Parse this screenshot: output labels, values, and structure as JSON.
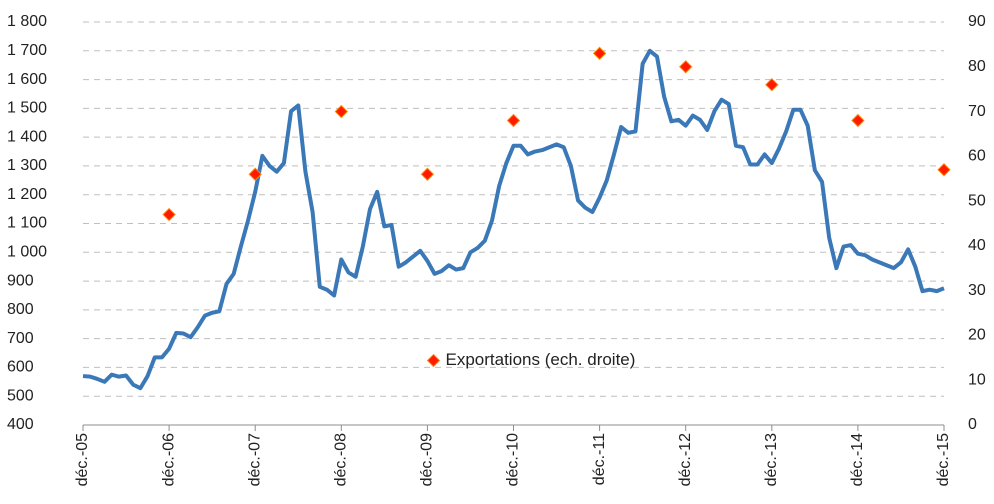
{
  "chart_data": {
    "type": "line",
    "categories": [
      "déc.-05",
      null,
      null,
      null,
      null,
      null,
      null,
      null,
      null,
      null,
      null,
      null,
      "déc.-06",
      null,
      null,
      null,
      null,
      null,
      null,
      null,
      null,
      null,
      null,
      null,
      "déc.-07",
      null,
      null,
      null,
      null,
      null,
      null,
      null,
      null,
      null,
      null,
      null,
      "déc.-08",
      null,
      null,
      null,
      null,
      null,
      null,
      null,
      null,
      null,
      null,
      null,
      "déc.-09",
      null,
      null,
      null,
      null,
      null,
      null,
      null,
      null,
      null,
      null,
      null,
      "déc.-10",
      null,
      null,
      null,
      null,
      null,
      null,
      null,
      null,
      null,
      null,
      null,
      "déc.-11",
      null,
      null,
      null,
      null,
      null,
      null,
      null,
      null,
      null,
      null,
      null,
      "déc.-12",
      null,
      null,
      null,
      null,
      null,
      null,
      null,
      null,
      null,
      null,
      null,
      "déc.-13",
      null,
      null,
      null,
      null,
      null,
      null,
      null,
      null,
      null,
      null,
      null,
      "déc.-14",
      null,
      null,
      null,
      null,
      null,
      null,
      null,
      null,
      null,
      null,
      null,
      "déc.-15"
    ],
    "series": [
      {
        "type": "line",
        "color": "#3a78b7",
        "axis": "y",
        "values": [
          570,
          568,
          560,
          550,
          575,
          568,
          572,
          540,
          528,
          570,
          635,
          635,
          665,
          720,
          718,
          705,
          740,
          780,
          790,
          795,
          890,
          925,
          1020,
          1110,
          1210,
          1335,
          1300,
          1280,
          1310,
          1490,
          1510,
          1280,
          1140,
          880,
          870,
          850,
          975,
          930,
          915,
          1020,
          1150,
          1210,
          1090,
          1095,
          950,
          965,
          985,
          1005,
          970,
          925,
          935,
          955,
          940,
          945,
          1000,
          1015,
          1040,
          1110,
          1230,
          1310,
          1370,
          1370,
          1340,
          1350,
          1355,
          1365,
          1375,
          1365,
          1300,
          1180,
          1155,
          1140,
          1190,
          1250,
          1340,
          1435,
          1415,
          1420,
          1655,
          1700,
          1680,
          1540,
          1455,
          1460,
          1440,
          1475,
          1460,
          1425,
          1490,
          1530,
          1515,
          1370,
          1365,
          1305,
          1305,
          1340,
          1310,
          1360,
          1420,
          1495,
          1495,
          1440,
          1285,
          1245,
          1050,
          945,
          1020,
          1025,
          995,
          990,
          975,
          965,
          955,
          945,
          965,
          1010,
          950,
          865,
          870,
          865,
          875
        ]
      },
      {
        "type": "scatter",
        "name": "Exportations (ech. droite)",
        "color": "#ff1a00",
        "axis": "y2",
        "values": [
          null,
          null,
          null,
          null,
          null,
          null,
          null,
          null,
          null,
          null,
          null,
          null,
          47,
          null,
          null,
          null,
          null,
          null,
          null,
          null,
          null,
          null,
          null,
          null,
          56,
          null,
          null,
          null,
          null,
          null,
          null,
          null,
          null,
          null,
          null,
          null,
          70,
          null,
          null,
          null,
          null,
          null,
          null,
          null,
          null,
          null,
          null,
          null,
          56,
          null,
          null,
          null,
          null,
          null,
          null,
          null,
          null,
          null,
          null,
          null,
          68,
          null,
          null,
          null,
          null,
          null,
          null,
          null,
          null,
          null,
          null,
          null,
          83,
          null,
          null,
          null,
          null,
          null,
          null,
          null,
          null,
          null,
          null,
          null,
          80,
          null,
          null,
          null,
          null,
          null,
          null,
          null,
          null,
          null,
          null,
          null,
          76,
          null,
          null,
          null,
          null,
          null,
          null,
          null,
          null,
          null,
          null,
          null,
          68,
          null,
          null,
          null,
          null,
          null,
          null,
          null,
          null,
          null,
          null,
          null,
          57
        ]
      }
    ],
    "ylim": [
      400,
      1800
    ],
    "yticks": [
      400,
      500,
      600,
      700,
      800,
      900,
      {
        "value": 1000,
        "label": "1 000"
      },
      {
        "value": 1100,
        "label": "1 100"
      },
      {
        "value": 1200,
        "label": "1 200"
      },
      {
        "value": 1300,
        "label": "1 300"
      },
      {
        "value": 1400,
        "label": "1 400"
      },
      {
        "value": 1500,
        "label": "1 500"
      },
      {
        "value": 1600,
        "label": "1 600"
      },
      {
        "value": 1700,
        "label": "1 700"
      },
      {
        "value": 1800,
        "label": "1 800"
      }
    ],
    "y2lim": [
      0,
      90
    ],
    "y2ticks": [
      0,
      10,
      20,
      30,
      40,
      50,
      60,
      70,
      80,
      90
    ],
    "grid": true,
    "legend_position": "center"
  }
}
